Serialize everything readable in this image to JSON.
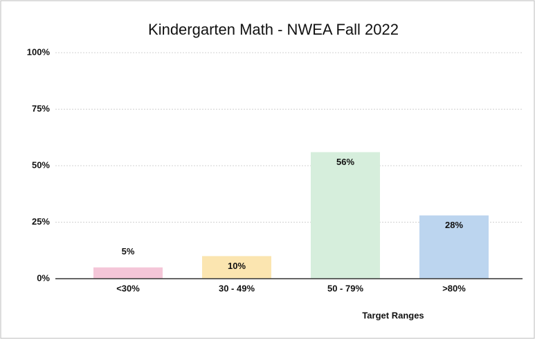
{
  "chart_data": {
    "type": "bar",
    "title": "Kindergarten Math - NWEA Fall 2022",
    "x_label": "Target Ranges",
    "categories": [
      "<30%",
      "30 - 49%",
      "50 - 79%",
      ">80%"
    ],
    "values": [
      5,
      10,
      56,
      28
    ],
    "value_labels": [
      "5%",
      "10%",
      "56%",
      "28%"
    ],
    "colors": [
      "#f4c6d8",
      "#fbe5b0",
      "#d6eedc",
      "#bcd5ef"
    ],
    "ylim": [
      0,
      100
    ],
    "yticks": [
      {
        "value": 0,
        "label": "0%"
      },
      {
        "value": 25,
        "label": "25%"
      },
      {
        "value": 50,
        "label": "50%"
      },
      {
        "value": 75,
        "label": "75%"
      },
      {
        "value": 100,
        "label": "100%"
      }
    ],
    "grid": true
  }
}
